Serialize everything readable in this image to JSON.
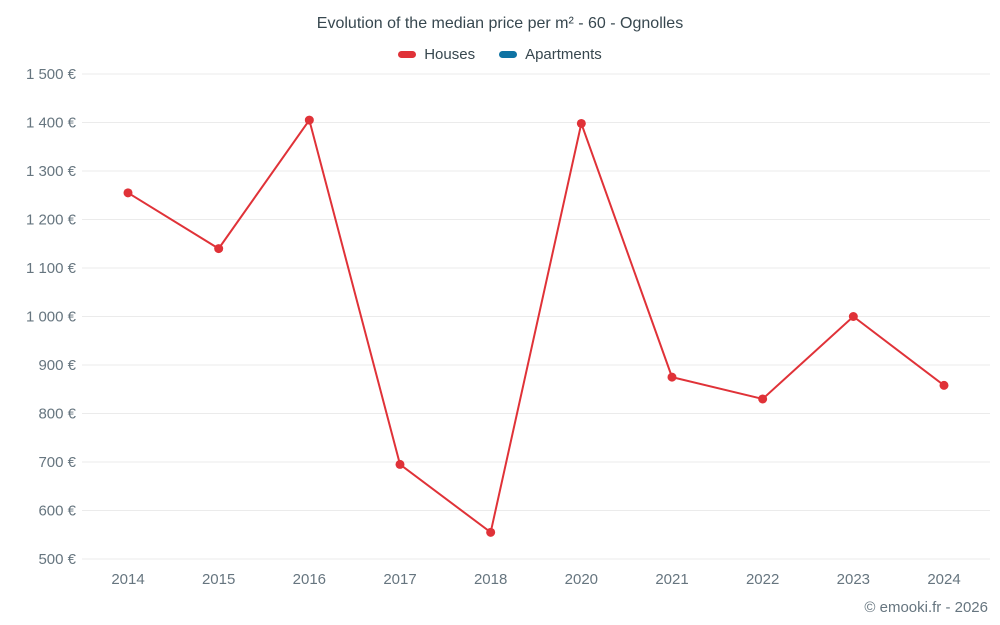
{
  "chart_data": {
    "type": "line",
    "title": "Evolution of the median price per m² - 60 - Ognolles",
    "categories": [
      "2014",
      "2015",
      "2016",
      "2017",
      "2018",
      "2020",
      "2021",
      "2022",
      "2023",
      "2024"
    ],
    "series": [
      {
        "name": "Houses",
        "color": "#e03238",
        "values": [
          1255,
          1140,
          1405,
          695,
          555,
          1398,
          875,
          830,
          1000,
          858
        ]
      },
      {
        "name": "Apartments",
        "color": "#0e73a3",
        "values": [
          null,
          null,
          null,
          null,
          null,
          null,
          null,
          null,
          null,
          null
        ]
      }
    ],
    "xlabel": "",
    "ylabel": "",
    "ylim": [
      500,
      1500
    ],
    "ytick_step": 100,
    "y_suffix": " €",
    "grid": "horizontal",
    "legend_position": "top"
  },
  "footer": {
    "attribution": "© emooki.fr - 2026"
  },
  "colors": {
    "grid": "#ebebeb",
    "axis_text": "#66757f",
    "title_text": "#37474f"
  }
}
